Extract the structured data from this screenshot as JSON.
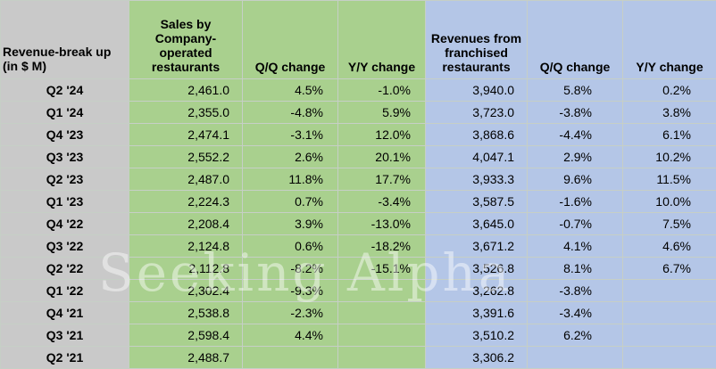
{
  "table": {
    "headers": [
      "Revenue-break up (in $ M)",
      "Sales by Company-operated restaurants",
      "Q/Q change",
      "Y/Y change",
      "Revenues from franchised restaurants",
      "Q/Q change",
      "Y/Y change"
    ],
    "rows": [
      [
        "Q2 '24",
        "2,461.0",
        "4.5%",
        "-1.0%",
        "3,940.0",
        "5.8%",
        "0.2%"
      ],
      [
        "Q1 '24",
        "2,355.0",
        "-4.8%",
        "5.9%",
        "3,723.0",
        "-3.8%",
        "3.8%"
      ],
      [
        "Q4 '23",
        "2,474.1",
        "-3.1%",
        "12.0%",
        "3,868.6",
        "-4.4%",
        "6.1%"
      ],
      [
        "Q3 '23",
        "2,552.2",
        "2.6%",
        "20.1%",
        "4,047.1",
        "2.9%",
        "10.2%"
      ],
      [
        "Q2 '23",
        "2,487.0",
        "11.8%",
        "17.7%",
        "3,933.3",
        "9.6%",
        "11.5%"
      ],
      [
        "Q1 '23",
        "2,224.3",
        "0.7%",
        "-3.4%",
        "3,587.5",
        "-1.6%",
        "10.0%"
      ],
      [
        "Q4 '22",
        "2,208.4",
        "3.9%",
        "-13.0%",
        "3,645.0",
        "-0.7%",
        "7.5%"
      ],
      [
        "Q3 '22",
        "2,124.8",
        "0.6%",
        "-18.2%",
        "3,671.2",
        "4.1%",
        "4.6%"
      ],
      [
        "Q2 '22",
        "2,112.8",
        "-8.2%",
        "-15.1%",
        "3,526.8",
        "8.1%",
        "6.7%"
      ],
      [
        "Q1 '22",
        "2,302.4",
        "-9.3%",
        "",
        "3,262.8",
        "-3.8%",
        ""
      ],
      [
        "Q4 '21",
        "2,538.8",
        "-2.3%",
        "",
        "3,391.6",
        "-3.4%",
        ""
      ],
      [
        "Q3 '21",
        "2,598.4",
        "4.4%",
        "",
        "3,510.2",
        "6.2%",
        ""
      ],
      [
        "Q2 '21",
        "2,488.7",
        "",
        "",
        "3,306.2",
        "",
        ""
      ]
    ]
  },
  "watermark": "Seeking Alpha"
}
